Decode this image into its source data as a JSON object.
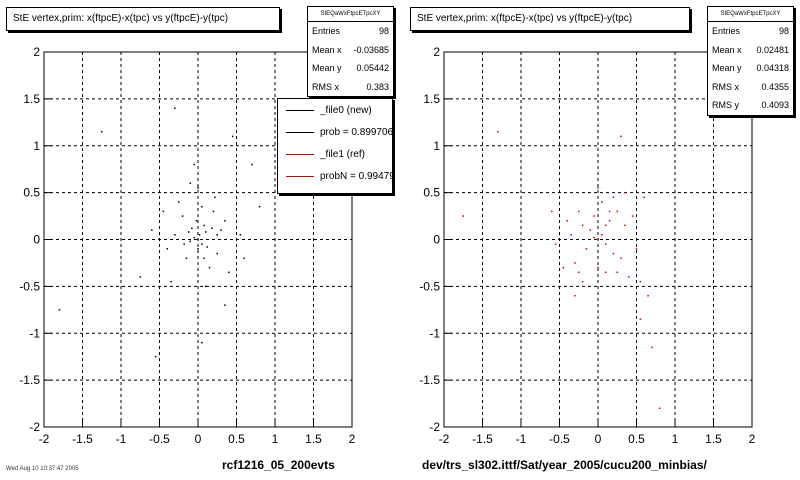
{
  "panels": [
    {
      "title": "StE  vertex,prim: x(ftpcE)-x(tpc) vs y(ftpcE)-y(tpc)",
      "stats": {
        "name": "StEQaWxFtpcETpcXY",
        "rows": [
          {
            "label": "Entries",
            "value": "98"
          },
          {
            "label": "Mean x",
            "value": "-0.03685"
          },
          {
            "label": "Mean y",
            "value": "0.05442"
          },
          {
            "label": "RMS x",
            "value": "0.383"
          }
        ]
      },
      "caption": "rcf1216_05_200evts"
    },
    {
      "title": "StE  vertex,prim: x(ftpcE)-x(tpc) vs y(ftpcE)-y(tpc)",
      "stats": {
        "name": "StEQaWxFtpcETpcXY",
        "rows": [
          {
            "label": "Entries",
            "value": "98"
          },
          {
            "label": "Mean x",
            "value": "0.02481"
          },
          {
            "label": "Mean y",
            "value": "0.04318"
          },
          {
            "label": "RMS x",
            "value": "0.4355"
          },
          {
            "label": "RMS y",
            "value": "0.4093"
          }
        ]
      },
      "caption": "dev/trs_sl302.ittf/Sat/year_2005/cucu200_minbias/"
    }
  ],
  "legend": [
    {
      "label": "_file0 (new)",
      "color": "#000000"
    },
    {
      "label": "prob = 0.899706",
      "color": "#000000"
    },
    {
      "label": "_file1 (ref)",
      "color": "#cc0000"
    },
    {
      "label": "probN = 0.994790",
      "color": "#cc0000"
    }
  ],
  "footer_date": "Wed Aug 10 10:37:47 2005",
  "chart_data": [
    {
      "type": "scatter",
      "title": "StE  vertex,prim: x(ftpcE)-x(tpc) vs y(ftpcE)-y(tpc)",
      "xlim": [
        -2,
        2
      ],
      "ylim": [
        -2,
        2
      ],
      "x_ticks": [
        "-2",
        "-1.5",
        "-1",
        "-0.5",
        "0",
        "0.5",
        "1",
        "1.5",
        "2"
      ],
      "y_ticks": [
        "-2",
        "-1.5",
        "-1",
        "-0.5",
        "0",
        "0.5",
        "1",
        "1.5",
        "2"
      ],
      "grid": true,
      "color": "#000000",
      "points": [
        [
          -1.25,
          1.15
        ],
        [
          -0.3,
          1.4
        ],
        [
          -0.05,
          0.8
        ],
        [
          0.45,
          1.1
        ],
        [
          0.0,
          0.0
        ],
        [
          0.02,
          0.05
        ],
        [
          -0.05,
          0.02
        ],
        [
          0.05,
          -0.05
        ],
        [
          0.1,
          0.08
        ],
        [
          -0.1,
          -0.02
        ],
        [
          0.08,
          0.15
        ],
        [
          -0.08,
          0.12
        ],
        [
          0.0,
          -0.1
        ],
        [
          0.12,
          -0.08
        ],
        [
          -0.02,
          0.2
        ],
        [
          0.2,
          0.3
        ],
        [
          -0.2,
          0.25
        ],
        [
          0.25,
          -0.15
        ],
        [
          -0.15,
          -0.2
        ],
        [
          0.3,
          0.1
        ],
        [
          -0.3,
          0.05
        ],
        [
          0.05,
          0.35
        ],
        [
          0.15,
          -0.3
        ],
        [
          -0.25,
          0.4
        ],
        [
          0.35,
          0.2
        ],
        [
          0.4,
          -0.35
        ],
        [
          -0.4,
          -0.1
        ],
        [
          0.55,
          0.05
        ],
        [
          0.22,
          0.45
        ],
        [
          -0.45,
          0.3
        ],
        [
          0.6,
          -0.2
        ],
        [
          0.8,
          0.35
        ],
        [
          -0.6,
          0.1
        ],
        [
          0.35,
          -0.7
        ],
        [
          0.7,
          0.8
        ],
        [
          -0.1,
          0.6
        ],
        [
          0.0,
          0.55
        ],
        [
          0.1,
          -0.5
        ],
        [
          -0.35,
          -0.45
        ],
        [
          -0.75,
          -0.4
        ],
        [
          -1.8,
          -0.75
        ],
        [
          -0.55,
          -1.25
        ],
        [
          0.05,
          -1.1
        ],
        [
          0.25,
          0.05
        ],
        [
          -0.12,
          0.08
        ],
        [
          0.08,
          -0.2
        ],
        [
          0.18,
          0.12
        ],
        [
          -0.18,
          -0.05
        ]
      ]
    },
    {
      "type": "scatter",
      "title": "StE  vertex,prim: x(ftpcE)-x(tpc) vs y(ftpcE)-y(tpc)",
      "xlim": [
        -2,
        2
      ],
      "ylim": [
        -2,
        2
      ],
      "x_ticks": [
        "-2",
        "-1.5",
        "-1",
        "-0.5",
        "0",
        "0.5",
        "1",
        "1.5",
        "2"
      ],
      "y_ticks": [
        "-2",
        "-1.5",
        "-1",
        "-0.5",
        "0",
        "0.5",
        "1",
        "1.5",
        "2"
      ],
      "grid": true,
      "color": "#cc0000",
      "points": [
        [
          -1.3,
          1.15
        ],
        [
          0.0,
          0.55
        ],
        [
          0.3,
          1.1
        ],
        [
          -1.75,
          0.25
        ],
        [
          0.0,
          0.0
        ],
        [
          0.05,
          0.05
        ],
        [
          -0.05,
          0.02
        ],
        [
          0.1,
          -0.05
        ],
        [
          -0.1,
          0.1
        ],
        [
          0.15,
          0.2
        ],
        [
          -0.15,
          -0.1
        ],
        [
          0.2,
          -0.15
        ],
        [
          -0.2,
          0.15
        ],
        [
          0.25,
          0.3
        ],
        [
          -0.25,
          0.3
        ],
        [
          0.3,
          -0.2
        ],
        [
          -0.3,
          -0.25
        ],
        [
          0.35,
          0.15
        ],
        [
          -0.35,
          0.05
        ],
        [
          0.05,
          0.4
        ],
        [
          0.1,
          -0.35
        ],
        [
          -0.05,
          0.25
        ],
        [
          0.4,
          -0.4
        ],
        [
          -0.4,
          0.2
        ],
        [
          0.45,
          0.25
        ],
        [
          0.5,
          -0.1
        ],
        [
          -0.45,
          -0.3
        ],
        [
          0.2,
          0.45
        ],
        [
          -0.2,
          -0.45
        ],
        [
          0.6,
          0.45
        ],
        [
          0.55,
          -0.45
        ],
        [
          -0.6,
          0.3
        ],
        [
          0.35,
          0.5
        ],
        [
          -0.3,
          -0.6
        ],
        [
          0.65,
          -0.6
        ],
        [
          0.7,
          -1.15
        ],
        [
          -0.25,
          -0.35
        ],
        [
          0.15,
          0.3
        ],
        [
          0.25,
          -0.35
        ],
        [
          0.55,
          -0.85
        ],
        [
          0.8,
          -1.8
        ],
        [
          -0.55,
          -0.05
        ],
        [
          0.0,
          -0.3
        ],
        [
          0.1,
          0.15
        ]
      ]
    }
  ]
}
